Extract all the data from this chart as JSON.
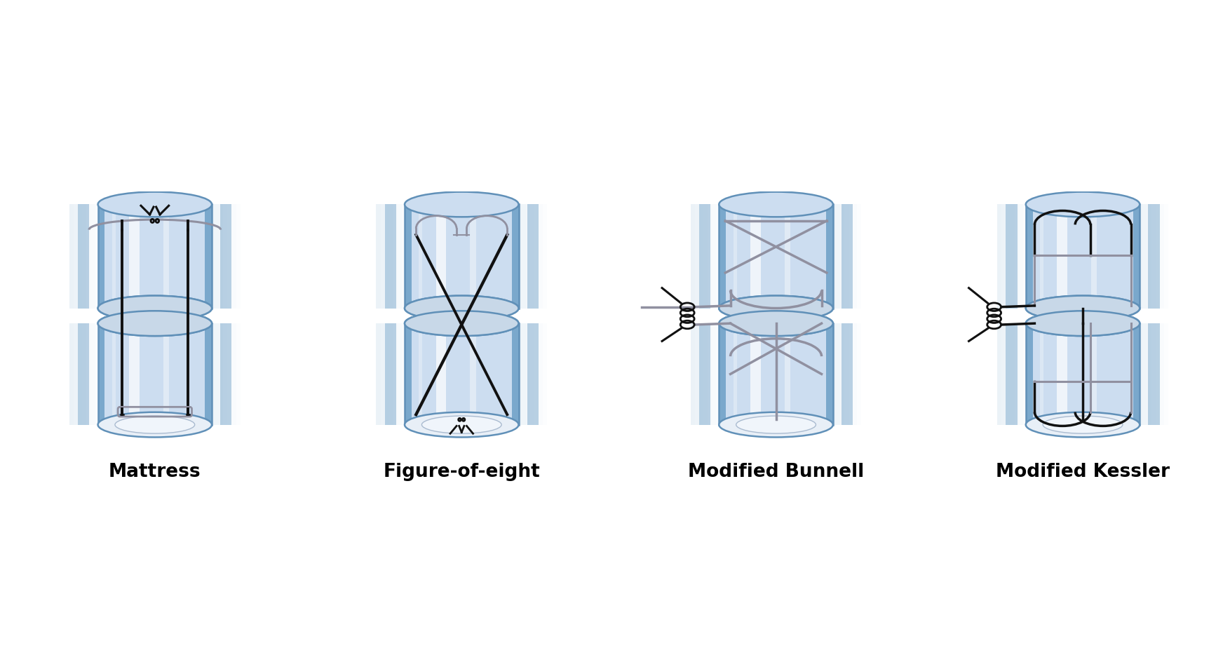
{
  "background_color": "#ffffff",
  "labels": [
    "Mattress",
    "Figure-of-eight",
    "Modified Bunnell",
    "Modified Kessler"
  ],
  "label_fontsize": 19,
  "tendon_color_light": "#ccddf0",
  "tendon_color_mid": "#a8c4e0",
  "tendon_color_dark": "#7aa8cc",
  "tendon_edge_color": "#6090b8",
  "tendon_end_color": "#d8e8f4",
  "gap_color": "#e8f0f8",
  "suture_black": "#111111",
  "suture_gray": "#9090a0",
  "suture_lw": 2.8,
  "fig_width": 17.54,
  "fig_height": 9.44
}
